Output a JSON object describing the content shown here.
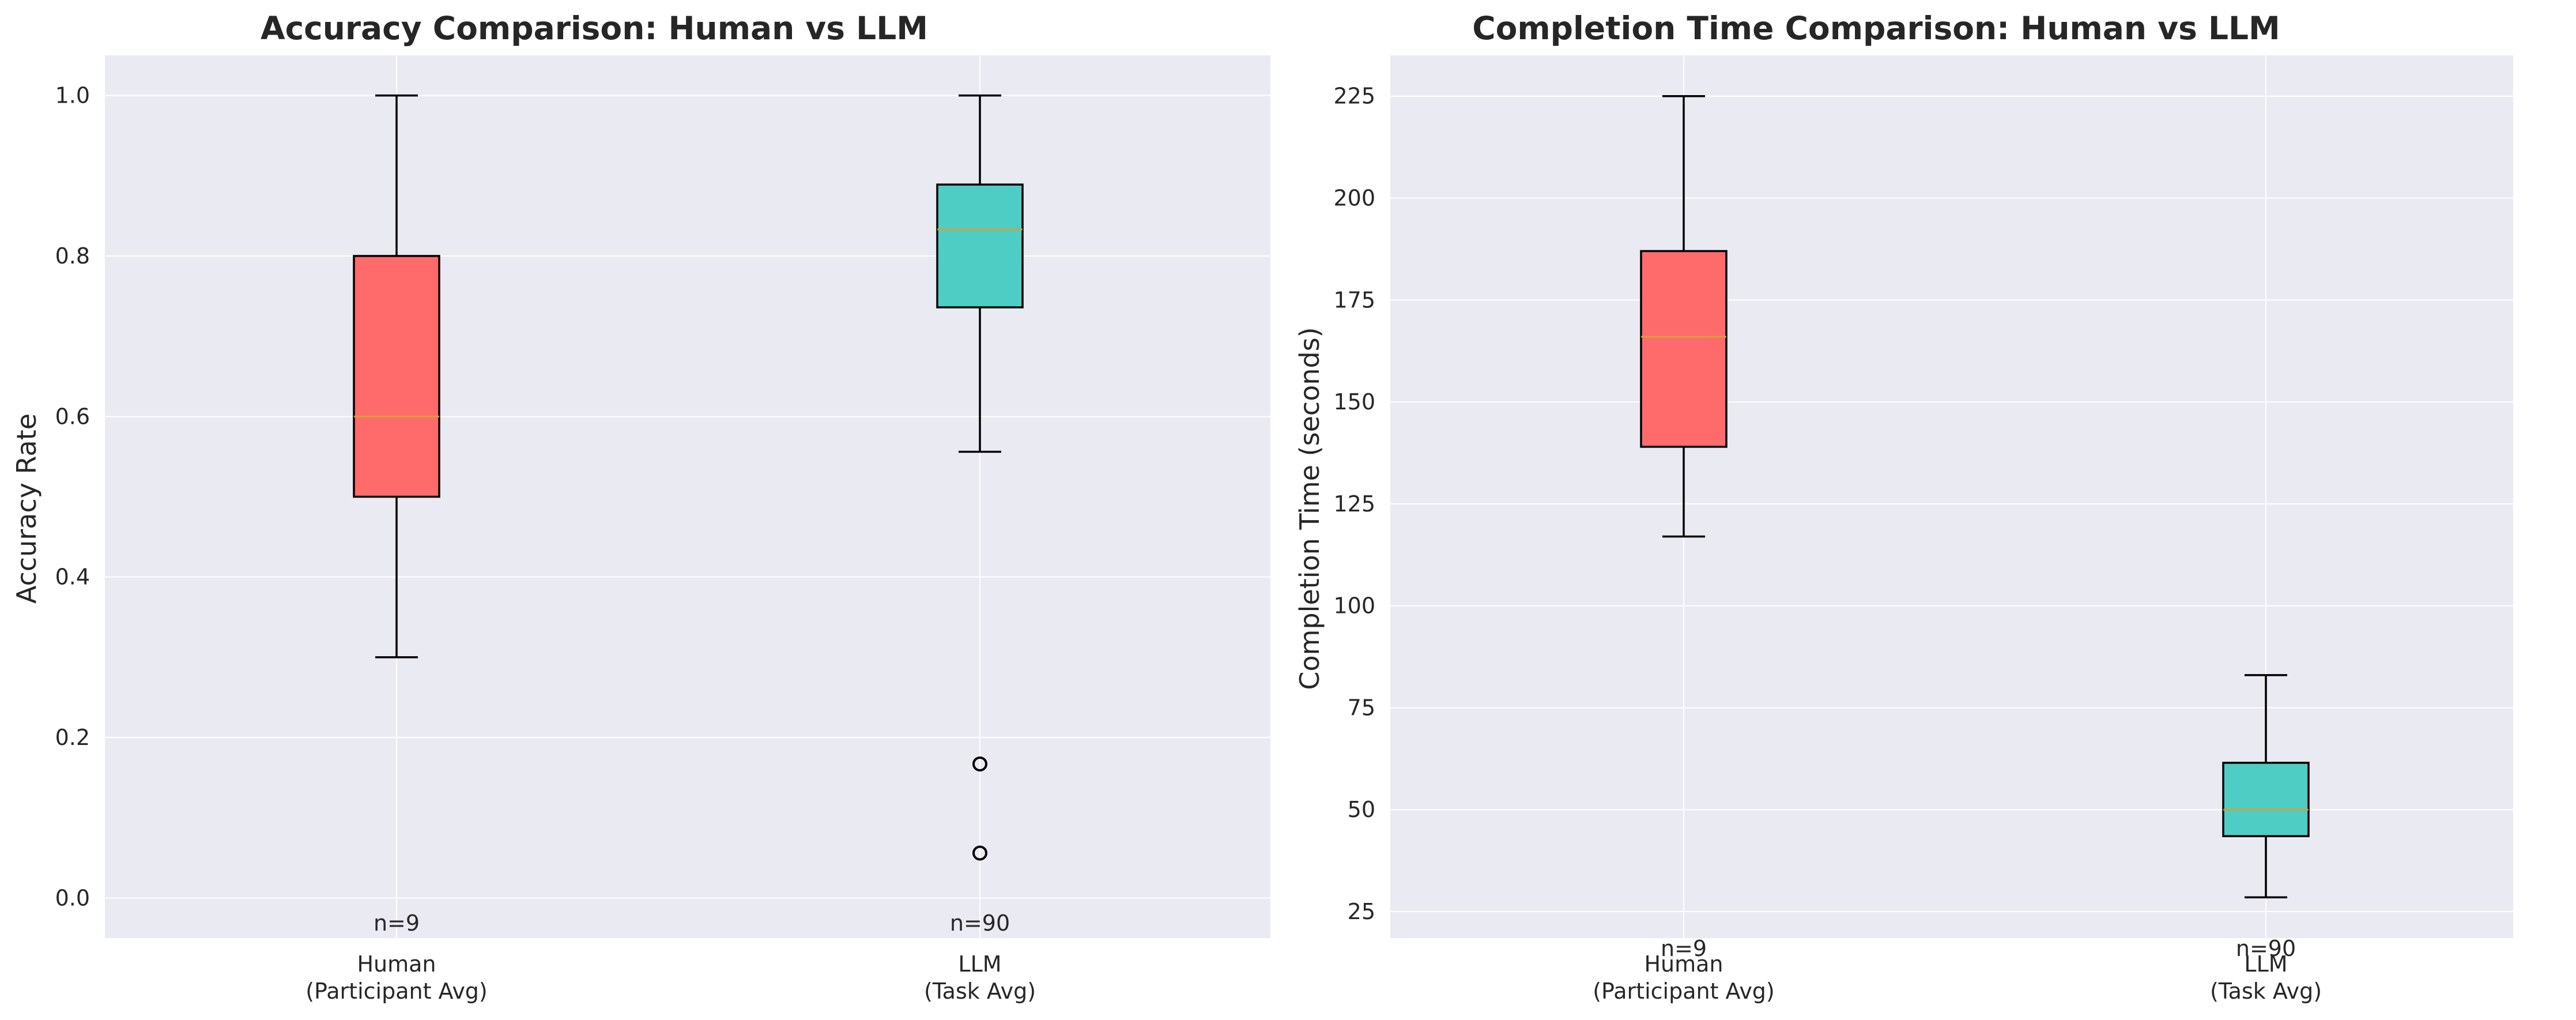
{
  "chart_data": [
    {
      "type": "box",
      "title": "Accuracy Comparison: Human vs LLM",
      "xlabel": "",
      "ylabel": "Accuracy Rate",
      "ylim": [
        -0.05,
        1.05
      ],
      "yticks": [
        "0.0",
        "0.2",
        "0.4",
        "0.6",
        "0.8",
        "1.0"
      ],
      "grid": true,
      "categories": [
        {
          "line1": "Human",
          "line2": "(Participant Avg)",
          "n_label": "n=9",
          "color": "#ff6b6b",
          "whisker_low": 0.3,
          "q1": 0.5,
          "median": 0.6,
          "q3": 0.8,
          "whisker_high": 1.0,
          "outliers": []
        },
        {
          "line1": "LLM",
          "line2": "(Task Avg)",
          "n_label": "n=90",
          "color": "#4ecdc4",
          "whisker_low": 0.556,
          "q1": 0.736,
          "median": 0.833,
          "q3": 0.889,
          "whisker_high": 1.0,
          "outliers": [
            0.167,
            0.056
          ]
        }
      ]
    },
    {
      "type": "box",
      "title": "Completion Time Comparison: Human vs LLM",
      "xlabel": "",
      "ylabel": "Completion Time (seconds)",
      "ylim": [
        18.5,
        235
      ],
      "yticks": [
        "25",
        "50",
        "75",
        "100",
        "125",
        "150",
        "175",
        "200",
        "225"
      ],
      "grid": true,
      "categories": [
        {
          "line1": "Human",
          "line2": "(Participant Avg)",
          "n_label": "n=9",
          "color": "#ff6b6b",
          "whisker_low": 117,
          "q1": 139,
          "median": 166,
          "q3": 187,
          "whisker_high": 225,
          "outliers": []
        },
        {
          "line1": "LLM",
          "line2": "(Task Avg)",
          "n_label": "n=90",
          "color": "#4ecdc4",
          "whisker_low": 28.5,
          "q1": 43.5,
          "median": 50,
          "q3": 61.5,
          "whisker_high": 83,
          "outliers": []
        }
      ]
    }
  ]
}
